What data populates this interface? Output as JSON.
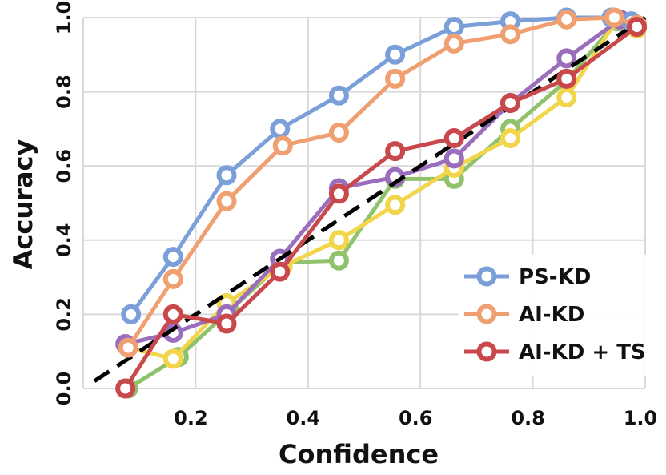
{
  "chart_data": {
    "type": "line",
    "title": "",
    "xlabel": "Confidence",
    "ylabel": "Accuracy",
    "xlim": [
      0.0,
      1.0
    ],
    "ylim": [
      0.0,
      1.0
    ],
    "xticks": [
      "0.2",
      "0.4",
      "0.6",
      "0.8",
      "1.0"
    ],
    "yticks": [
      "0.0",
      "0.2",
      "0.4",
      "0.6",
      "0.8",
      "1.0"
    ],
    "grid": true,
    "legend_position": "bottom-right",
    "reference_line": {
      "name": "perfect calibration",
      "style": "dashed",
      "color": "#000000",
      "x": [
        0.02,
        1.0
      ],
      "y": [
        0.02,
        1.0
      ]
    },
    "series": [
      {
        "name": "unlabeled green",
        "color": "#8fc26a",
        "in_legend": false,
        "x": [
          0.08,
          0.17,
          0.26,
          0.355,
          0.455,
          0.555,
          0.66,
          0.76,
          0.86,
          0.95,
          0.985
        ],
        "y": [
          0.0,
          0.085,
          0.21,
          0.34,
          0.345,
          0.565,
          0.565,
          0.7,
          0.83,
          0.99,
          0.975
        ]
      },
      {
        "name": "unlabeled yellow",
        "color": "#f2d54a",
        "in_legend": false,
        "x": [
          0.08,
          0.16,
          0.255,
          0.355,
          0.455,
          0.555,
          0.66,
          0.76,
          0.86,
          0.95,
          0.985
        ],
        "y": [
          0.11,
          0.08,
          0.23,
          0.33,
          0.4,
          0.495,
          0.595,
          0.675,
          0.785,
          0.995,
          0.97
        ]
      },
      {
        "name": "unlabeled purple",
        "color": "#9a6dbd",
        "in_legend": false,
        "x": [
          0.075,
          0.16,
          0.255,
          0.35,
          0.455,
          0.555,
          0.66,
          0.76,
          0.86,
          0.955,
          0.985
        ],
        "y": [
          0.12,
          0.15,
          0.2,
          0.35,
          0.54,
          0.57,
          0.62,
          0.77,
          0.89,
          0.995,
          0.98
        ]
      },
      {
        "name": "PS-KD",
        "color": "#7b9fd8",
        "in_legend": true,
        "x": [
          0.085,
          0.16,
          0.255,
          0.35,
          0.455,
          0.555,
          0.66,
          0.76,
          0.86,
          0.94,
          0.975
        ],
        "y": [
          0.2,
          0.355,
          0.575,
          0.7,
          0.79,
          0.9,
          0.975,
          0.99,
          1.0,
          1.0,
          0.99
        ]
      },
      {
        "name": "AI-KD",
        "color": "#f0a070",
        "in_legend": true,
        "x": [
          0.08,
          0.16,
          0.255,
          0.355,
          0.455,
          0.555,
          0.66,
          0.76,
          0.86,
          0.945,
          0.985
        ],
        "y": [
          0.11,
          0.295,
          0.505,
          0.655,
          0.69,
          0.835,
          0.93,
          0.955,
          0.995,
          1.0,
          0.98
        ]
      },
      {
        "name": "AI-KD + TS",
        "color": "#c9484c",
        "in_legend": true,
        "x": [
          0.075,
          0.16,
          0.255,
          0.35,
          0.455,
          0.555,
          0.66,
          0.76,
          0.86,
          0.985
        ],
        "y": [
          0.0,
          0.2,
          0.175,
          0.315,
          0.525,
          0.64,
          0.675,
          0.77,
          0.835,
          0.975
        ]
      }
    ]
  }
}
